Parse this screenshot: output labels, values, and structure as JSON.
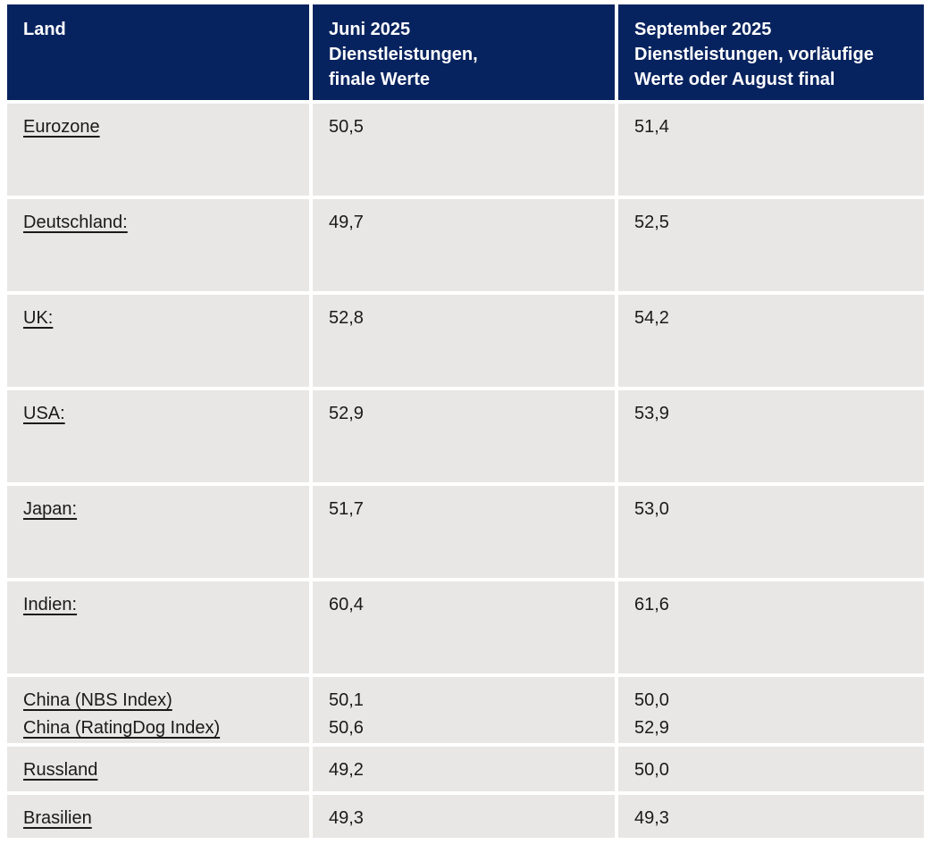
{
  "theme": {
    "header_bg": "#07235f",
    "header_text": "#ffffff",
    "row_bg": "#e8e7e5",
    "body_text": "#1a1a1a",
    "gap_color": "#ffffff"
  },
  "table": {
    "headers": {
      "land": "Land",
      "juni": "Juni 2025\nDienstleistungen,\nfinale Werte",
      "september": "September 2025\nDienstleistungen, vorläufige\nWerte oder August final"
    },
    "rows": [
      {
        "land": "Eurozone",
        "juni": "50,5",
        "september": "51,4"
      },
      {
        "land": "Deutschland:",
        "juni": "49,7",
        "september": "52,5"
      },
      {
        "land": "UK:",
        "juni": "52,8",
        "september": "54,2"
      },
      {
        "land": "USA:",
        "juni": "52,9",
        "september": "53,9"
      },
      {
        "land": "Japan:",
        "juni": "51,7",
        "september": "53,0"
      },
      {
        "land": "Indien:",
        "juni": "60,4",
        "september": "61,6"
      },
      {
        "land": "China (NBS Index)\nChina (RatingDog Index)",
        "juni": "50,1\n50,6",
        "september": "50,0\n52,9"
      },
      {
        "land": "Russland",
        "juni": "49,2",
        "september": "50,0"
      },
      {
        "land": "Brasilien",
        "juni": "49,3",
        "september": "49,3"
      }
    ]
  }
}
